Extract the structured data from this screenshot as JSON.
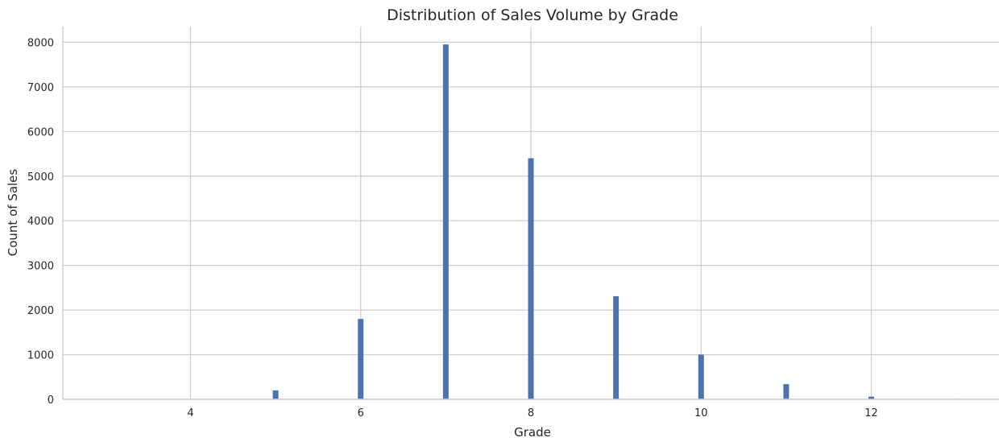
{
  "chart_data": {
    "type": "bar",
    "title": "Distribution of Sales Volume by Grade",
    "xlabel": "Grade",
    "ylabel": "Count of Sales",
    "x": [
      3,
      4,
      5,
      6,
      7,
      8,
      9,
      10,
      11,
      12,
      13
    ],
    "values": [
      1,
      5,
      200,
      1800,
      7950,
      5400,
      2310,
      1000,
      340,
      60,
      10
    ],
    "xlim": [
      2.5,
      13.5
    ],
    "ylim": [
      0,
      8350
    ],
    "xticks": [
      4,
      6,
      8,
      10,
      12
    ],
    "yticks": [
      0,
      1000,
      2000,
      3000,
      4000,
      5000,
      6000,
      7000,
      8000
    ],
    "grid": true,
    "bar_color": "#4c72b0"
  }
}
